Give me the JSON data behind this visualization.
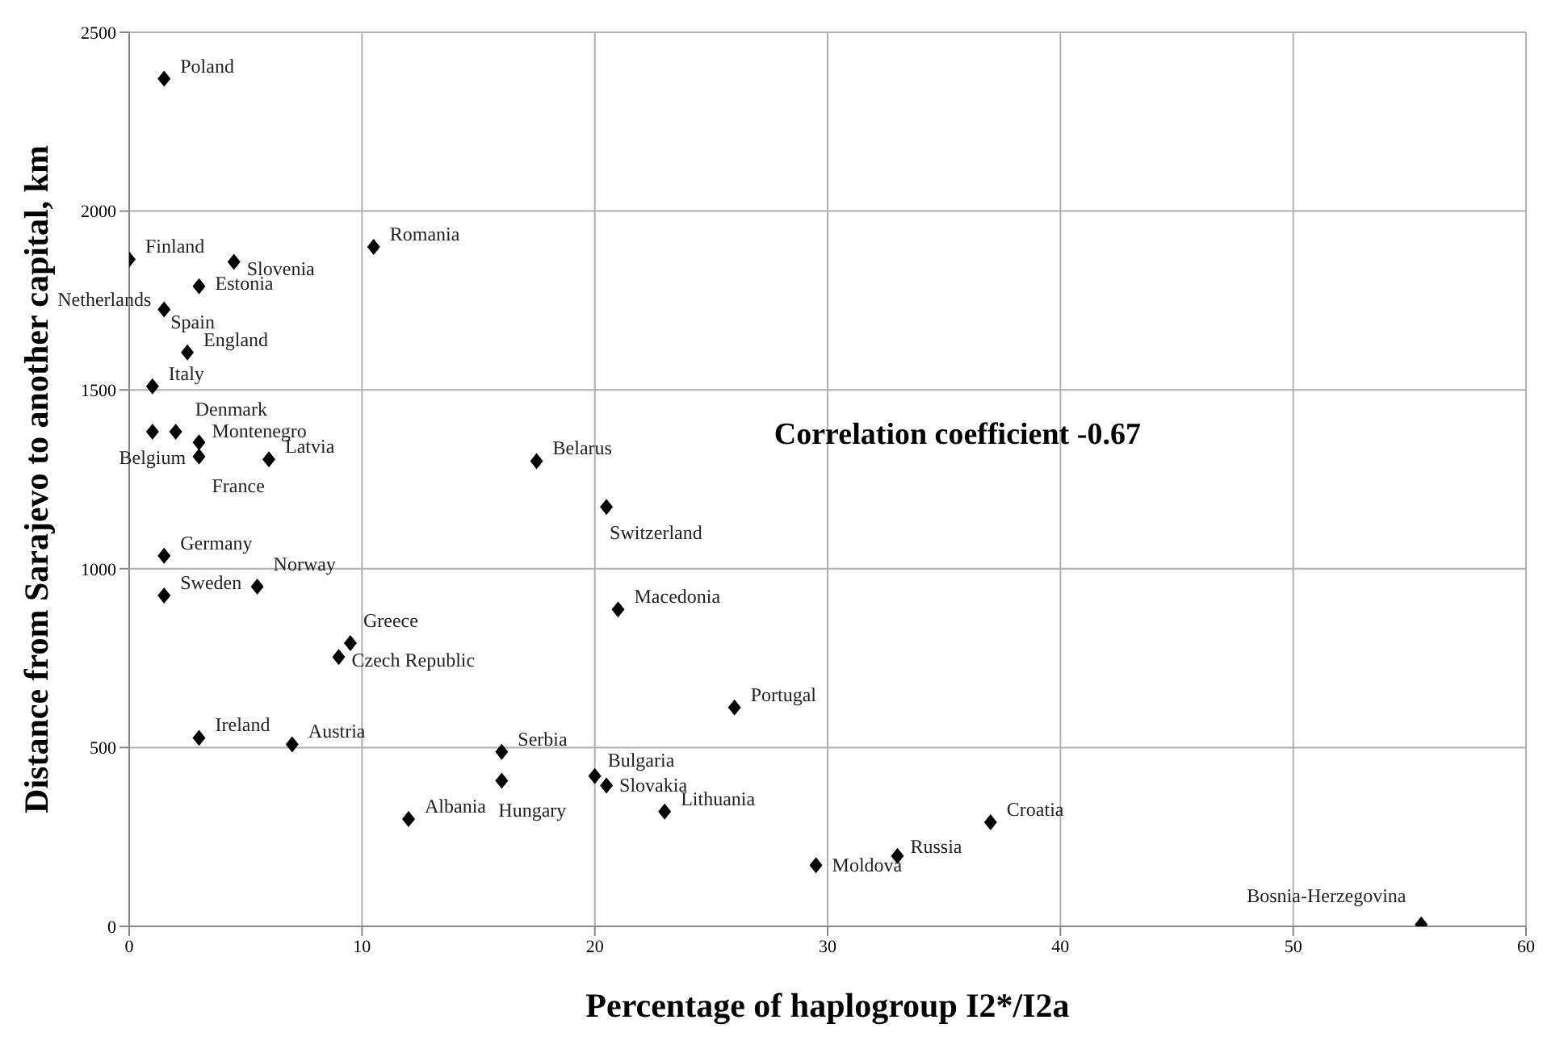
{
  "chart_data": {
    "type": "scatter",
    "xlabel": "Percentage of haplogroup I2*/I2a",
    "ylabel": "Distance from Sarajevo to another capital, km",
    "x": [
      1.5,
      0,
      4.5,
      3,
      1.5,
      2.5,
      1,
      1,
      2,
      3,
      3,
      6,
      10.5,
      1.5,
      1.5,
      5.5,
      9.5,
      9,
      3,
      7,
      12,
      16,
      16,
      17.5,
      20.5,
      21,
      26,
      20,
      20.5,
      23,
      29.5,
      33,
      37,
      55.5
    ],
    "series": [
      {
        "color": "#000000",
        "values": [
          2370,
          1865,
          1858,
          1790,
          1725,
          1605,
          1510,
          1383,
          1383,
          1353,
          1314,
          1306,
          1900,
          1036,
          925,
          950,
          792,
          753,
          527,
          509,
          300,
          488,
          407,
          1301,
          1173,
          886,
          612,
          420,
          394,
          321,
          171,
          197,
          291,
          5
        ]
      }
    ],
    "xlim": [
      0,
      60
    ],
    "xticks": [
      0,
      10,
      20,
      30,
      40,
      50,
      60
    ],
    "ylim": [
      0,
      2500
    ],
    "yticks": [
      0,
      500,
      1000,
      1500,
      2000,
      2500
    ],
    "grid": true,
    "marker": "diamond",
    "annotations": [
      {
        "text": "Poland",
        "x": 1.5,
        "y": 2370
      },
      {
        "text": "Finland",
        "x": 0,
        "y": 1865
      },
      {
        "text": "Slovenia",
        "x": 4.5,
        "y": 1858
      },
      {
        "text": "Estonia",
        "x": 3,
        "y": 1790
      },
      {
        "text": "Netherlands",
        "x": 1.5,
        "y": 1725
      },
      {
        "text": "Spain",
        "x": 1.5,
        "y": 1725
      },
      {
        "text": "England",
        "x": 2.5,
        "y": 1605
      },
      {
        "text": "Italy",
        "x": 1,
        "y": 1510
      },
      {
        "text": "Belgium",
        "x": 1,
        "y": 1383
      },
      {
        "text": "Denmark",
        "x": 2,
        "y": 1383
      },
      {
        "text": "Montenegro",
        "x": 3,
        "y": 1353
      },
      {
        "text": "France",
        "x": 3,
        "y": 1314
      },
      {
        "text": "Latvia",
        "x": 6,
        "y": 1306
      },
      {
        "text": "Romania",
        "x": 10.5,
        "y": 1900
      },
      {
        "text": "Germany",
        "x": 1.5,
        "y": 1036
      },
      {
        "text": "Sweden",
        "x": 1.5,
        "y": 925
      },
      {
        "text": "Norway",
        "x": 5.5,
        "y": 950
      },
      {
        "text": "Greece",
        "x": 9.5,
        "y": 792
      },
      {
        "text": "Czech Republic",
        "x": 9,
        "y": 753
      },
      {
        "text": "Ireland",
        "x": 3,
        "y": 527
      },
      {
        "text": "Austria",
        "x": 7,
        "y": 509
      },
      {
        "text": "Albania",
        "x": 12,
        "y": 300
      },
      {
        "text": "Serbia",
        "x": 16,
        "y": 488
      },
      {
        "text": "Hungary",
        "x": 16,
        "y": 407
      },
      {
        "text": "Belarus",
        "x": 17.5,
        "y": 1301
      },
      {
        "text": "Switzerland",
        "x": 20.5,
        "y": 1173
      },
      {
        "text": "Macedonia",
        "x": 21,
        "y": 886
      },
      {
        "text": "Portugal",
        "x": 26,
        "y": 612
      },
      {
        "text": "Bulgaria",
        "x": 20,
        "y": 420
      },
      {
        "text": "Slovakia",
        "x": 20.5,
        "y": 394
      },
      {
        "text": "Lithuania",
        "x": 23,
        "y": 321
      },
      {
        "text": "Moldova",
        "x": 29.5,
        "y": 171
      },
      {
        "text": "Russia",
        "x": 33,
        "y": 197
      },
      {
        "text": "Croatia",
        "x": 37,
        "y": 291
      },
      {
        "text": "Bosnia-Herzegovina",
        "x": 55.5,
        "y": 5
      },
      "Correlation coefficient -0.67"
    ]
  }
}
